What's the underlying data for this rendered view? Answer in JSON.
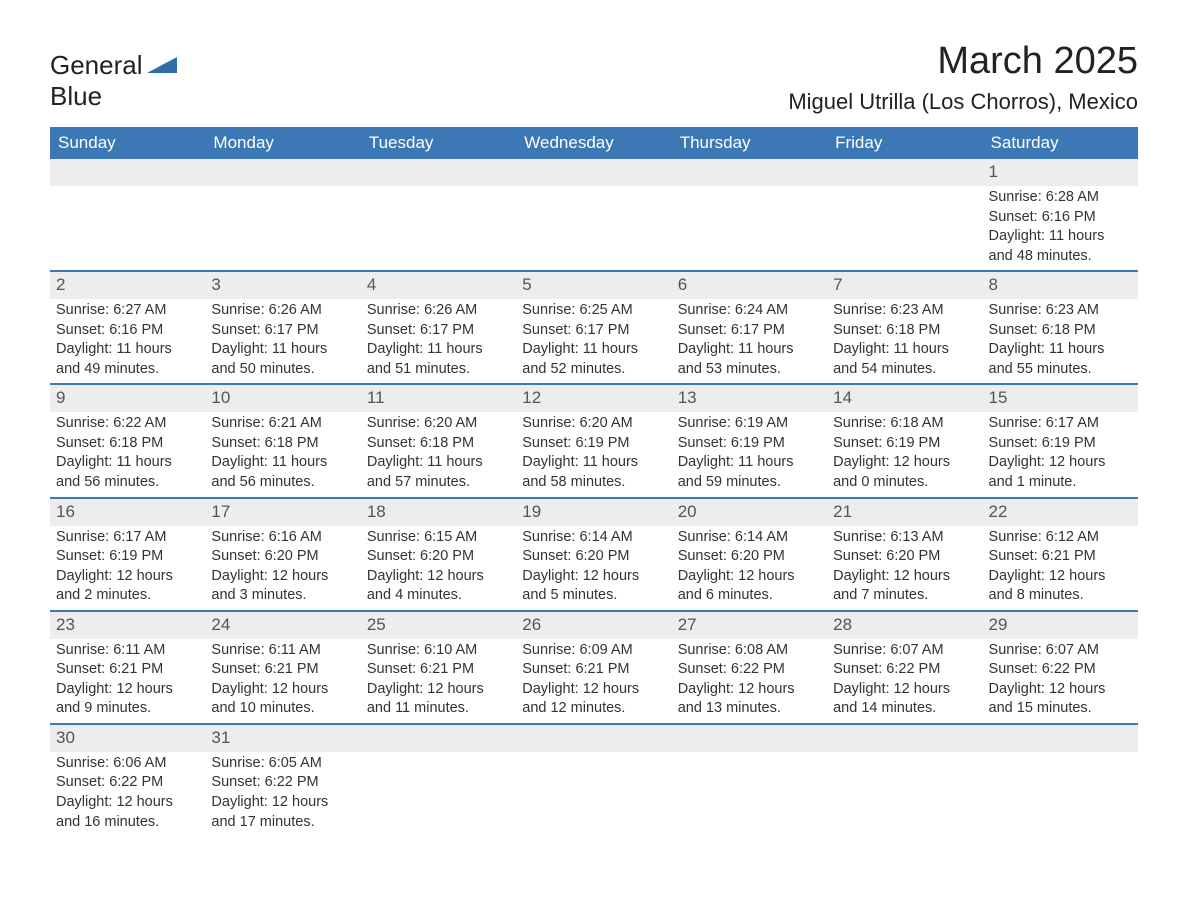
{
  "logo": {
    "word1": "General",
    "word2": "Blue"
  },
  "title": "March 2025",
  "location": "Miguel Utrilla (Los Chorros), Mexico",
  "colors": {
    "header_bg": "#3b78b5",
    "header_text": "#ffffff",
    "daynum_bg": "#ededed",
    "body_text": "#333333",
    "rule": "#3b78b5",
    "page_bg": "#ffffff"
  },
  "fonts": {
    "title_size_pt": 38,
    "location_size_pt": 22,
    "dow_size_pt": 17,
    "body_size_pt": 14.5
  },
  "days_of_week": [
    "Sunday",
    "Monday",
    "Tuesday",
    "Wednesday",
    "Thursday",
    "Friday",
    "Saturday"
  ],
  "weeks": [
    [
      null,
      null,
      null,
      null,
      null,
      null,
      {
        "n": "1",
        "sr": "Sunrise: 6:28 AM",
        "ss": "Sunset: 6:16 PM",
        "dl": "Daylight: 11 hours and 48 minutes."
      }
    ],
    [
      {
        "n": "2",
        "sr": "Sunrise: 6:27 AM",
        "ss": "Sunset: 6:16 PM",
        "dl": "Daylight: 11 hours and 49 minutes."
      },
      {
        "n": "3",
        "sr": "Sunrise: 6:26 AM",
        "ss": "Sunset: 6:17 PM",
        "dl": "Daylight: 11 hours and 50 minutes."
      },
      {
        "n": "4",
        "sr": "Sunrise: 6:26 AM",
        "ss": "Sunset: 6:17 PM",
        "dl": "Daylight: 11 hours and 51 minutes."
      },
      {
        "n": "5",
        "sr": "Sunrise: 6:25 AM",
        "ss": "Sunset: 6:17 PM",
        "dl": "Daylight: 11 hours and 52 minutes."
      },
      {
        "n": "6",
        "sr": "Sunrise: 6:24 AM",
        "ss": "Sunset: 6:17 PM",
        "dl": "Daylight: 11 hours and 53 minutes."
      },
      {
        "n": "7",
        "sr": "Sunrise: 6:23 AM",
        "ss": "Sunset: 6:18 PM",
        "dl": "Daylight: 11 hours and 54 minutes."
      },
      {
        "n": "8",
        "sr": "Sunrise: 6:23 AM",
        "ss": "Sunset: 6:18 PM",
        "dl": "Daylight: 11 hours and 55 minutes."
      }
    ],
    [
      {
        "n": "9",
        "sr": "Sunrise: 6:22 AM",
        "ss": "Sunset: 6:18 PM",
        "dl": "Daylight: 11 hours and 56 minutes."
      },
      {
        "n": "10",
        "sr": "Sunrise: 6:21 AM",
        "ss": "Sunset: 6:18 PM",
        "dl": "Daylight: 11 hours and 56 minutes."
      },
      {
        "n": "11",
        "sr": "Sunrise: 6:20 AM",
        "ss": "Sunset: 6:18 PM",
        "dl": "Daylight: 11 hours and 57 minutes."
      },
      {
        "n": "12",
        "sr": "Sunrise: 6:20 AM",
        "ss": "Sunset: 6:19 PM",
        "dl": "Daylight: 11 hours and 58 minutes."
      },
      {
        "n": "13",
        "sr": "Sunrise: 6:19 AM",
        "ss": "Sunset: 6:19 PM",
        "dl": "Daylight: 11 hours and 59 minutes."
      },
      {
        "n": "14",
        "sr": "Sunrise: 6:18 AM",
        "ss": "Sunset: 6:19 PM",
        "dl": "Daylight: 12 hours and 0 minutes."
      },
      {
        "n": "15",
        "sr": "Sunrise: 6:17 AM",
        "ss": "Sunset: 6:19 PM",
        "dl": "Daylight: 12 hours and 1 minute."
      }
    ],
    [
      {
        "n": "16",
        "sr": "Sunrise: 6:17 AM",
        "ss": "Sunset: 6:19 PM",
        "dl": "Daylight: 12 hours and 2 minutes."
      },
      {
        "n": "17",
        "sr": "Sunrise: 6:16 AM",
        "ss": "Sunset: 6:20 PM",
        "dl": "Daylight: 12 hours and 3 minutes."
      },
      {
        "n": "18",
        "sr": "Sunrise: 6:15 AM",
        "ss": "Sunset: 6:20 PM",
        "dl": "Daylight: 12 hours and 4 minutes."
      },
      {
        "n": "19",
        "sr": "Sunrise: 6:14 AM",
        "ss": "Sunset: 6:20 PM",
        "dl": "Daylight: 12 hours and 5 minutes."
      },
      {
        "n": "20",
        "sr": "Sunrise: 6:14 AM",
        "ss": "Sunset: 6:20 PM",
        "dl": "Daylight: 12 hours and 6 minutes."
      },
      {
        "n": "21",
        "sr": "Sunrise: 6:13 AM",
        "ss": "Sunset: 6:20 PM",
        "dl": "Daylight: 12 hours and 7 minutes."
      },
      {
        "n": "22",
        "sr": "Sunrise: 6:12 AM",
        "ss": "Sunset: 6:21 PM",
        "dl": "Daylight: 12 hours and 8 minutes."
      }
    ],
    [
      {
        "n": "23",
        "sr": "Sunrise: 6:11 AM",
        "ss": "Sunset: 6:21 PM",
        "dl": "Daylight: 12 hours and 9 minutes."
      },
      {
        "n": "24",
        "sr": "Sunrise: 6:11 AM",
        "ss": "Sunset: 6:21 PM",
        "dl": "Daylight: 12 hours and 10 minutes."
      },
      {
        "n": "25",
        "sr": "Sunrise: 6:10 AM",
        "ss": "Sunset: 6:21 PM",
        "dl": "Daylight: 12 hours and 11 minutes."
      },
      {
        "n": "26",
        "sr": "Sunrise: 6:09 AM",
        "ss": "Sunset: 6:21 PM",
        "dl": "Daylight: 12 hours and 12 minutes."
      },
      {
        "n": "27",
        "sr": "Sunrise: 6:08 AM",
        "ss": "Sunset: 6:22 PM",
        "dl": "Daylight: 12 hours and 13 minutes."
      },
      {
        "n": "28",
        "sr": "Sunrise: 6:07 AM",
        "ss": "Sunset: 6:22 PM",
        "dl": "Daylight: 12 hours and 14 minutes."
      },
      {
        "n": "29",
        "sr": "Sunrise: 6:07 AM",
        "ss": "Sunset: 6:22 PM",
        "dl": "Daylight: 12 hours and 15 minutes."
      }
    ],
    [
      {
        "n": "30",
        "sr": "Sunrise: 6:06 AM",
        "ss": "Sunset: 6:22 PM",
        "dl": "Daylight: 12 hours and 16 minutes."
      },
      {
        "n": "31",
        "sr": "Sunrise: 6:05 AM",
        "ss": "Sunset: 6:22 PM",
        "dl": "Daylight: 12 hours and 17 minutes."
      },
      null,
      null,
      null,
      null,
      null
    ]
  ]
}
